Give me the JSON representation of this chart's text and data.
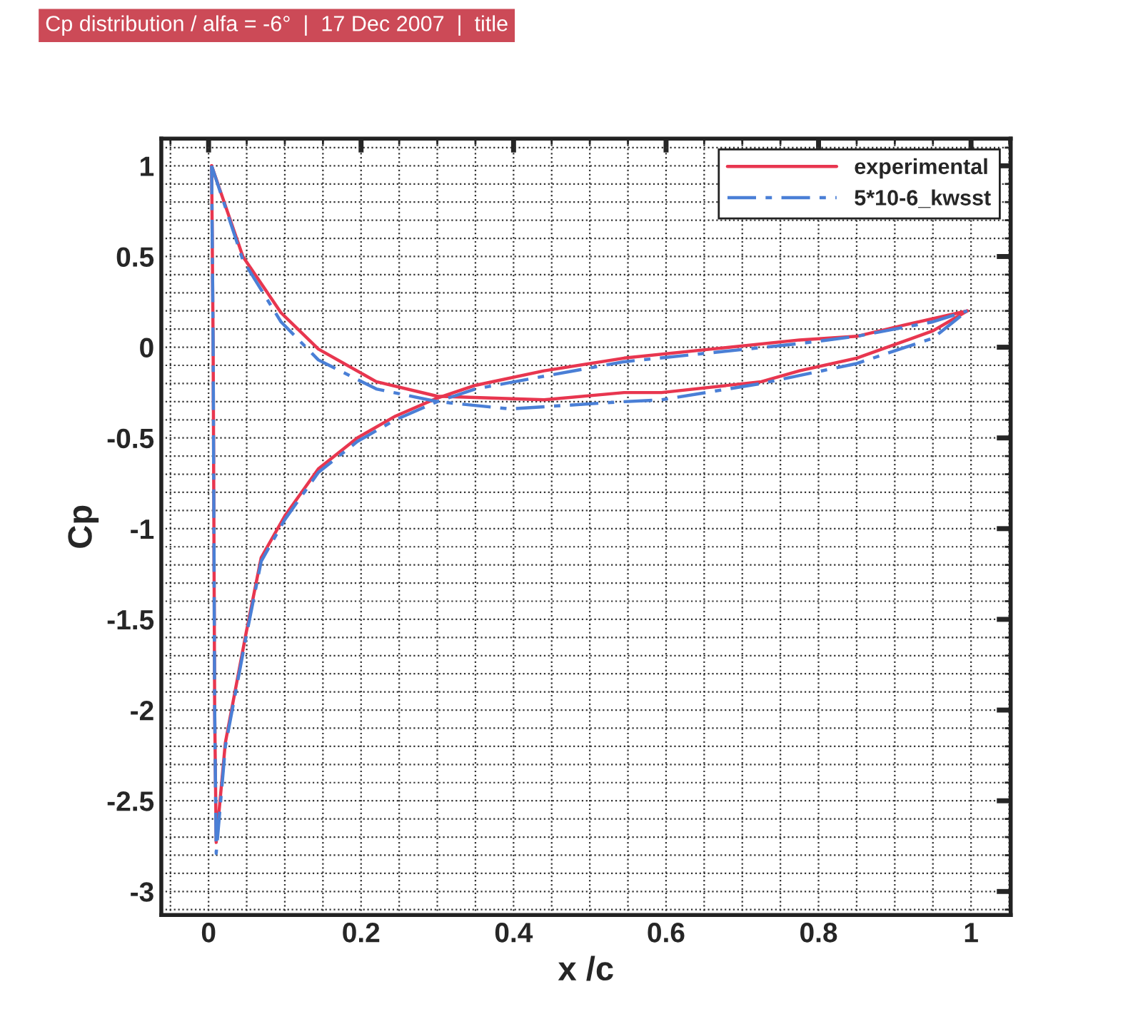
{
  "chart_data": {
    "type": "line",
    "title": "Cp distribution / alfa = -6°  |  17 Dec 2007  |  title",
    "xlabel": "x /c",
    "ylabel": "Cp",
    "xlim": [
      -0.062,
      1.052
    ],
    "ylim": [
      -3.13,
      1.15
    ],
    "xticks": [
      0,
      0.2,
      0.4,
      0.6,
      0.8,
      1
    ],
    "yticks": [
      -3,
      -2.5,
      -2,
      -1.5,
      -1,
      -0.5,
      0,
      0.5,
      1
    ],
    "grid": true,
    "legend": "top right",
    "series": [
      {
        "name": "experimental",
        "color": "#e8364f",
        "line_style": "solid",
        "x": [
          0.004,
          0.045,
          0.095,
          0.144,
          0.22,
          0.3,
          0.44,
          0.545,
          0.594,
          0.725,
          0.775,
          0.85,
          0.95,
          0.995
        ],
        "values": [
          1.0,
          0.5,
          0.19,
          -0.01,
          -0.19,
          -0.27,
          -0.29,
          -0.25,
          -0.25,
          -0.19,
          -0.13,
          -0.06,
          0.09,
          0.2
        ]
      },
      {
        "color": "#e8364f",
        "line_style": "solid",
        "x": [
          0.004,
          0.006,
          0.008,
          0.01,
          0.022,
          0.049,
          0.069,
          0.1,
          0.144,
          0.195,
          0.245,
          0.3,
          0.35,
          0.44,
          0.545,
          0.66,
          0.775,
          0.85,
          0.91,
          0.995
        ],
        "values": [
          1.0,
          0.0,
          -2.0,
          -2.73,
          -2.18,
          -1.58,
          -1.16,
          -0.93,
          -0.67,
          -0.5,
          -0.38,
          -0.28,
          -0.21,
          -0.13,
          -0.06,
          -0.01,
          0.04,
          0.06,
          0.12,
          0.2
        ]
      },
      {
        "name": "5*10-6_kwsst",
        "color": "#4a7fd6",
        "line_style": "dashed",
        "x": [
          0.004,
          0.045,
          0.095,
          0.144,
          0.22,
          0.3,
          0.395,
          0.545,
          0.594,
          0.725,
          0.85,
          0.95,
          0.995
        ],
        "values": [
          1.0,
          0.48,
          0.14,
          -0.07,
          -0.23,
          -0.3,
          -0.34,
          -0.3,
          -0.29,
          -0.2,
          -0.09,
          0.05,
          0.2
        ]
      },
      {
        "color": "#4a7fd6",
        "line_style": "dashed",
        "x": [
          0.004,
          0.006,
          0.008,
          0.01,
          0.022,
          0.049,
          0.069,
          0.1,
          0.144,
          0.195,
          0.245,
          0.3,
          0.35,
          0.44,
          0.545,
          0.66,
          0.775,
          0.85,
          0.95,
          0.995
        ],
        "values": [
          1.0,
          0.0,
          -2.0,
          -2.79,
          -2.2,
          -1.6,
          -1.18,
          -0.95,
          -0.69,
          -0.52,
          -0.4,
          -0.3,
          -0.23,
          -0.16,
          -0.08,
          -0.03,
          0.02,
          0.06,
          0.14,
          0.2
        ]
      }
    ]
  }
}
